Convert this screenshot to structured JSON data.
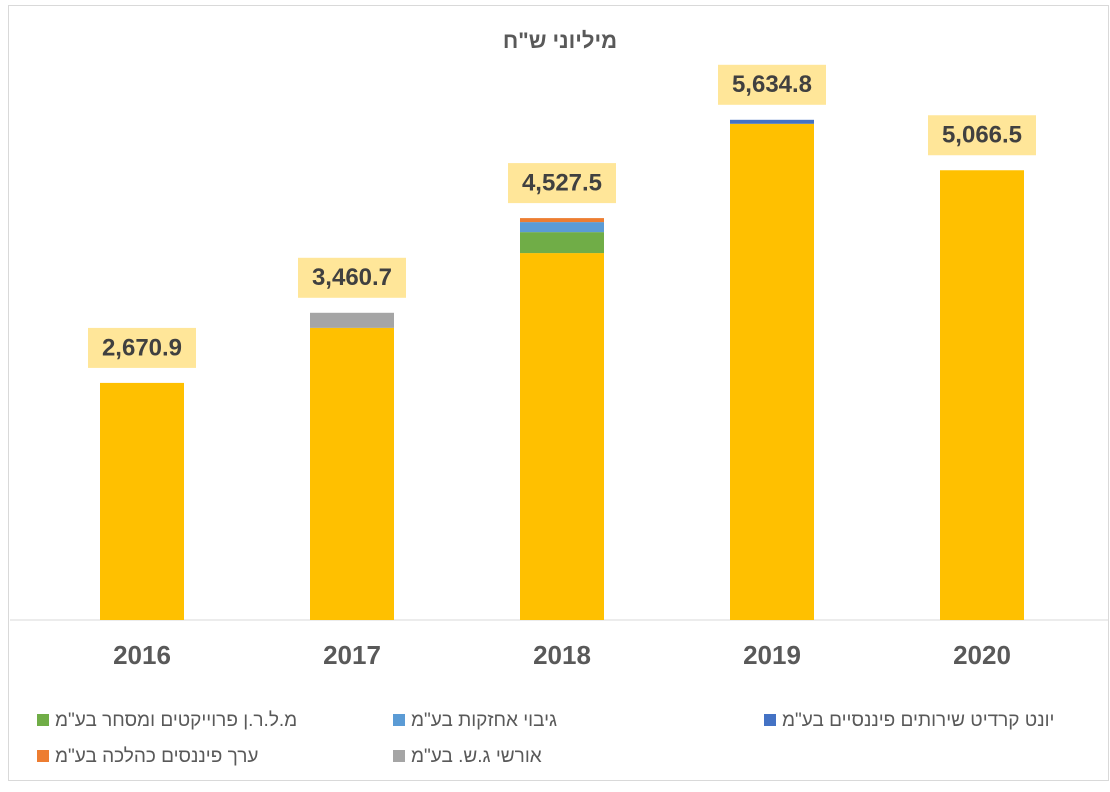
{
  "chart_data": {
    "type": "stacked_bar",
    "title": "מיליוני ש\"ח",
    "categories": [
      "2016",
      "2017",
      "2018",
      "2019",
      "2020"
    ],
    "series": [
      {
        "color": "#ffc000",
        "values": [
          2670.9,
          3290.7,
          4133.5,
          5589.8,
          5066.5
        ]
      },
      {
        "name": "מ.ל.ר.ן פרוייקטים ומסחר בע\"מ",
        "color": "#70ad47",
        "values": [
          null,
          null,
          236,
          null,
          null
        ]
      },
      {
        "name": "גיבוי אחזקות בע\"מ",
        "color": "#5b9bd5",
        "values": [
          null,
          null,
          113,
          null,
          null
        ]
      },
      {
        "name": "ערך פיננסים כהלכה בע\"מ",
        "color": "#ed7d31",
        "values": [
          null,
          null,
          45,
          null,
          null
        ]
      },
      {
        "name": "אורשי ג.ש. בע\"מ",
        "color": "#a5a5a5",
        "values": [
          null,
          170,
          null,
          null,
          null
        ]
      },
      {
        "name": "יונט קרדיט שירותים פיננסיים בע\"מ",
        "color": "#4472c4",
        "values": [
          null,
          null,
          null,
          45,
          null
        ]
      }
    ],
    "totals": [
      2670.9,
      3460.7,
      4527.5,
      5634.8,
      5066.5
    ],
    "total_labels": [
      "2,670.9",
      "3,460.7",
      "4,527.5",
      "5,634.8",
      "5,066.5"
    ],
    "ylim": [
      0,
      6500
    ]
  }
}
